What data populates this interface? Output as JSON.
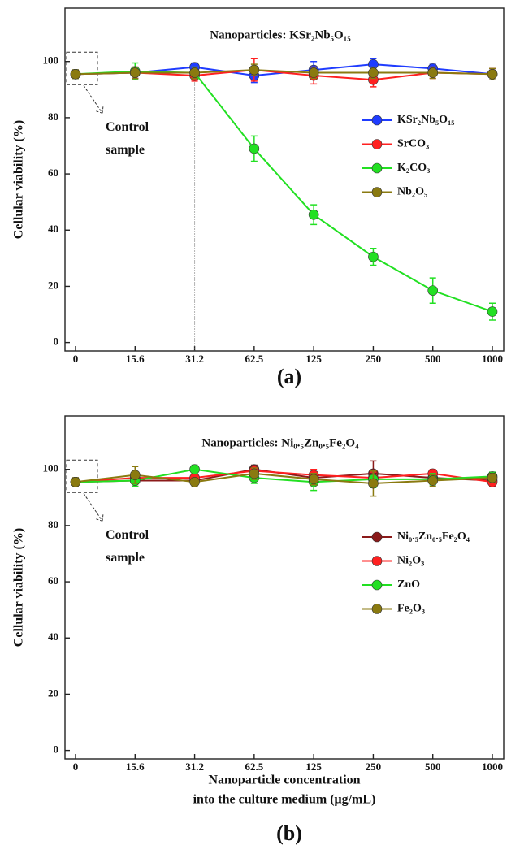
{
  "chart_data": [
    {
      "type": "line",
      "title": "Nanoparticles: KSr₂Nb₅O₁₅",
      "panel_label": "(a)",
      "ylabel": "Cellular viability (%)",
      "annotation": [
        "Control",
        "sample"
      ],
      "categories": [
        "0",
        "15.6",
        "31.2",
        "62.5",
        "125",
        "250",
        "500",
        "1000"
      ],
      "ylim": [
        -3,
        119
      ],
      "yticks": [
        0,
        20,
        40,
        60,
        80,
        100
      ],
      "legend": "right",
      "series": [
        {
          "name": "KSr₂Nb₅O₁₅",
          "color": "#1f3cff",
          "values": [
            95.5,
            96,
            98,
            95,
            97,
            99,
            97.5,
            95.5
          ],
          "errors": [
            1.5,
            2,
            1.5,
            2.5,
            3,
            2,
            1.5,
            2
          ]
        },
        {
          "name": "SrCO₃",
          "color": "#ff2020",
          "values": [
            95.5,
            96,
            95,
            97,
            95,
            93.5,
            96,
            95.5
          ],
          "errors": [
            1.5,
            2,
            2,
            4,
            3,
            2.5,
            2,
            2
          ]
        },
        {
          "name": "K₂CO₃",
          "color": "#22e022",
          "values": [
            95.5,
            96.5,
            96,
            69,
            45.5,
            30.5,
            18.5,
            11
          ],
          "errors": [
            1.5,
            3,
            2,
            4.5,
            3.5,
            3,
            4.5,
            3
          ]
        },
        {
          "name": "Nb₂O₅",
          "color": "#8a7a10",
          "values": [
            95.5,
            96,
            96,
            97,
            96,
            96,
            96,
            95.5
          ],
          "errors": [
            1.5,
            2,
            2,
            2,
            2,
            2,
            2,
            2
          ]
        }
      ]
    },
    {
      "type": "line",
      "title": "Nanoparticles: Ni₀.₅Zn₀.₅Fe₂O₄",
      "panel_label": "(b)",
      "ylabel": "Cellular viability (%)",
      "xlabel": [
        "Nanoparticle concentration",
        "into the culture medium (μg/mL)"
      ],
      "annotation": [
        "Control",
        "sample"
      ],
      "categories": [
        "0",
        "15.6",
        "31.2",
        "62.5",
        "125",
        "250",
        "500",
        "1000"
      ],
      "ylim": [
        -3,
        119
      ],
      "yticks": [
        0,
        20,
        40,
        60,
        80,
        100
      ],
      "legend": "right",
      "series": [
        {
          "name": "Ni₀.₅Zn₀.₅Fe₂O₄",
          "color": "#8b1a1a",
          "values": [
            95.5,
            96,
            96,
            100,
            97,
            98.5,
            97,
            96
          ],
          "errors": [
            1.5,
            2,
            1.5,
            1.5,
            2,
            4.5,
            2,
            1.5
          ]
        },
        {
          "name": "Ni₂O₃",
          "color": "#ff2020",
          "values": [
            95.5,
            97,
            97,
            99.5,
            98,
            97,
            98.5,
            95.5
          ],
          "errors": [
            1.5,
            2,
            1.5,
            1.5,
            2,
            2,
            1.5,
            1.5
          ]
        },
        {
          "name": "ZnO",
          "color": "#22e022",
          "values": [
            95.5,
            96,
            100,
            97,
            95.5,
            96.5,
            96.5,
            97.5
          ],
          "errors": [
            1.5,
            2,
            1.5,
            2,
            3,
            3,
            2,
            1.5
          ]
        },
        {
          "name": "Fe₂O₃",
          "color": "#8a7a10",
          "values": [
            95.5,
            98,
            95.5,
            98.5,
            96.5,
            95,
            96,
            97
          ],
          "errors": [
            1.5,
            3,
            1.5,
            2,
            2,
            4.5,
            2,
            1.5
          ]
        }
      ]
    }
  ]
}
